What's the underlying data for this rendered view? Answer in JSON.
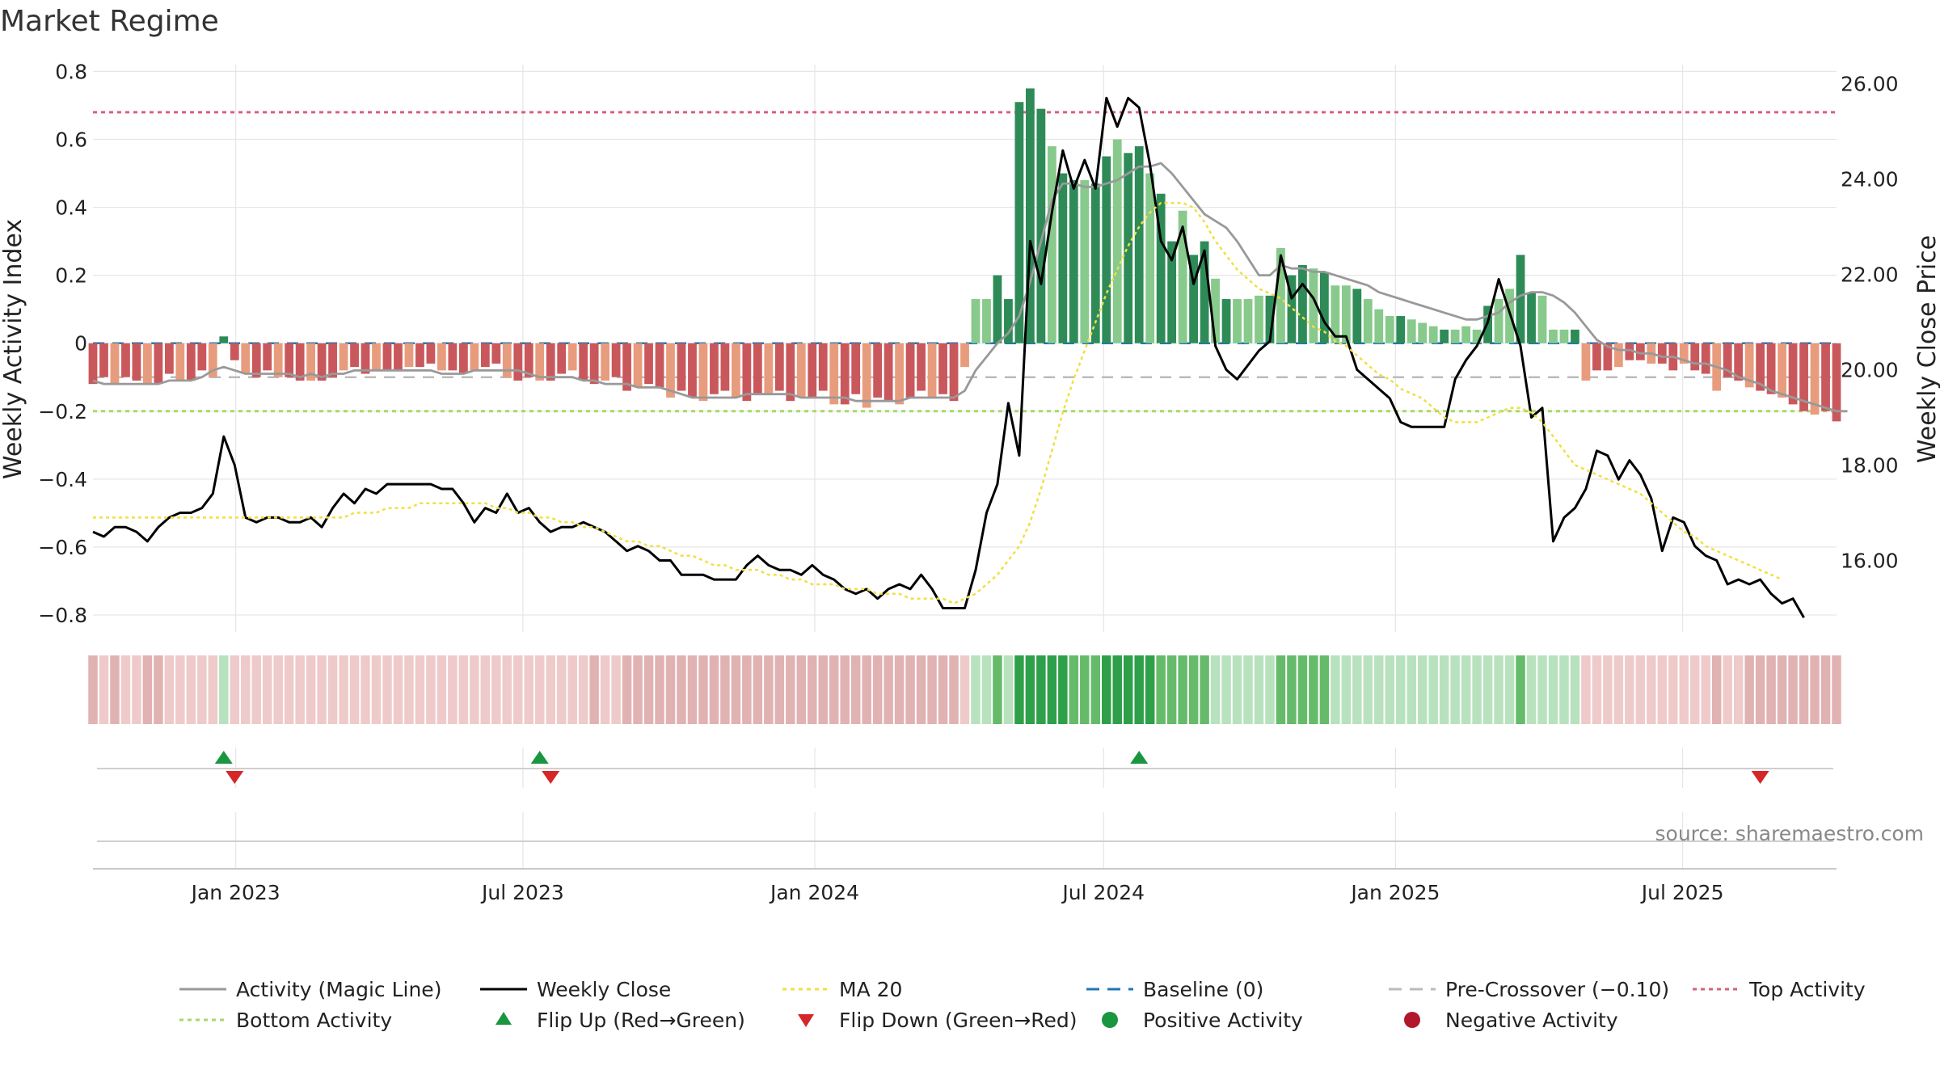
{
  "chart_data": {
    "type": "bar",
    "title": "Market Regime",
    "ylabel_left": "Weekly Activity Index",
    "ylabel_right": "Weekly Close Price",
    "ylim_left": [
      -0.85,
      0.82
    ],
    "ylim_right": [
      14.5,
      26.4
    ],
    "yticks_left": [
      "0.8",
      "0.6",
      "0.4",
      "0.2",
      "0",
      "−0.2",
      "−0.4",
      "−0.6",
      "−0.8"
    ],
    "yticks_left_values": [
      0.8,
      0.6,
      0.4,
      0.2,
      0,
      -0.2,
      -0.4,
      -0.6,
      -0.8
    ],
    "yticks_right": [
      "26.00",
      "24.00",
      "22.00",
      "20.00",
      "18.00",
      "16.00"
    ],
    "yticks_right_values": [
      26,
      24,
      22,
      20,
      18,
      16
    ],
    "x_start_date": "2022-10-03",
    "x_end_date": "2025-10-06",
    "xticks": [
      {
        "date": "2023-01-01",
        "label": "Jan 2023"
      },
      {
        "date": "2023-07-01",
        "label": "Jul 2023"
      },
      {
        "date": "2024-01-01",
        "label": "Jan 2024"
      },
      {
        "date": "2024-07-01",
        "label": "Jul 2024"
      },
      {
        "date": "2025-01-01",
        "label": "Jan 2025"
      },
      {
        "date": "2025-07-01",
        "label": "Jul 2025"
      }
    ],
    "reference_lines": [
      {
        "name": "Top Activity",
        "value": 0.68,
        "color": "#d9607a",
        "style": "dot"
      },
      {
        "name": "Baseline (0)",
        "value": 0,
        "color": "#1f77b4",
        "style": "dash"
      },
      {
        "name": "Pre-Crossover (−0.10)",
        "value": -0.1,
        "color": "#bbbbbb",
        "style": "dash"
      },
      {
        "name": "Bottom Activity",
        "value": -0.2,
        "color": "#a6d96a",
        "style": "dot"
      }
    ],
    "series": [
      {
        "name": "Activity (Magic Line)",
        "color": "#999999",
        "axis": "left",
        "values": [
          -0.11,
          -0.12,
          -0.12,
          -0.12,
          -0.12,
          -0.12,
          -0.12,
          -0.11,
          -0.11,
          -0.11,
          -0.1,
          -0.08,
          -0.07,
          -0.08,
          -0.09,
          -0.09,
          -0.09,
          -0.09,
          -0.09,
          -0.1,
          -0.09,
          -0.1,
          -0.09,
          -0.09,
          -0.08,
          -0.08,
          -0.08,
          -0.08,
          -0.08,
          -0.08,
          -0.08,
          -0.08,
          -0.09,
          -0.09,
          -0.09,
          -0.08,
          -0.08,
          -0.08,
          -0.08,
          -0.08,
          -0.09,
          -0.1,
          -0.1,
          -0.1,
          -0.1,
          -0.11,
          -0.11,
          -0.12,
          -0.12,
          -0.12,
          -0.13,
          -0.13,
          -0.13,
          -0.14,
          -0.15,
          -0.16,
          -0.16,
          -0.16,
          -0.16,
          -0.16,
          -0.15,
          -0.15,
          -0.15,
          -0.15,
          -0.15,
          -0.16,
          -0.16,
          -0.16,
          -0.16,
          -0.16,
          -0.17,
          -0.17,
          -0.17,
          -0.17,
          -0.17,
          -0.16,
          -0.16,
          -0.16,
          -0.16,
          -0.16,
          -0.14,
          -0.08,
          -0.04,
          0.0,
          0.03,
          0.08,
          0.18,
          0.3,
          0.42,
          0.47,
          0.47,
          0.46,
          0.46,
          0.47,
          0.48,
          0.5,
          0.52,
          0.52,
          0.53,
          0.5,
          0.46,
          0.42,
          0.38,
          0.36,
          0.34,
          0.3,
          0.25,
          0.2,
          0.2,
          0.23,
          0.22,
          0.22,
          0.21,
          0.21,
          0.2,
          0.19,
          0.18,
          0.17,
          0.15,
          0.14,
          0.13,
          0.12,
          0.11,
          0.1,
          0.09,
          0.08,
          0.07,
          0.07,
          0.08,
          0.09,
          0.12,
          0.14,
          0.15,
          0.15,
          0.14,
          0.12,
          0.09,
          0.05,
          0.01,
          -0.01,
          -0.02,
          -0.02,
          -0.03,
          -0.03,
          -0.04,
          -0.04,
          -0.05,
          -0.06,
          -0.06,
          -0.07,
          -0.08,
          -0.1,
          -0.11,
          -0.12,
          -0.14,
          -0.15,
          -0.16,
          -0.17,
          -0.18,
          -0.19,
          -0.2,
          -0.2
        ]
      },
      {
        "name": "Weekly Close",
        "color": "#000000",
        "axis": "right",
        "values": [
          16.6,
          16.5,
          16.7,
          16.7,
          16.6,
          16.4,
          16.7,
          16.9,
          17.0,
          17.0,
          17.1,
          17.4,
          18.6,
          18.0,
          16.9,
          16.8,
          16.9,
          16.9,
          16.8,
          16.8,
          16.9,
          16.7,
          17.1,
          17.4,
          17.2,
          17.5,
          17.4,
          17.6,
          17.6,
          17.6,
          17.6,
          17.6,
          17.5,
          17.5,
          17.2,
          16.8,
          17.1,
          17.0,
          17.4,
          17.0,
          17.1,
          16.8,
          16.6,
          16.7,
          16.7,
          16.8,
          16.7,
          16.6,
          16.4,
          16.2,
          16.3,
          16.2,
          16.0,
          16.0,
          15.7,
          15.7,
          15.7,
          15.6,
          15.6,
          15.6,
          15.9,
          16.1,
          15.9,
          15.8,
          15.8,
          15.7,
          15.9,
          15.7,
          15.6,
          15.4,
          15.3,
          15.4,
          15.2,
          15.4,
          15.5,
          15.4,
          15.7,
          15.4,
          15.0,
          15.0,
          15.0,
          15.8,
          17.0,
          17.6,
          19.3,
          18.2,
          22.7,
          21.8,
          23.3,
          24.6,
          23.8,
          24.4,
          23.8,
          25.7,
          25.1,
          25.7,
          25.5,
          24.3,
          22.7,
          22.3,
          23.0,
          21.8,
          22.5,
          20.5,
          20.0,
          19.8,
          20.1,
          20.4,
          20.6,
          22.4,
          21.5,
          21.8,
          21.5,
          21.0,
          20.7,
          20.7,
          20.0,
          19.8,
          19.6,
          19.4,
          18.9,
          18.8,
          18.8,
          18.8,
          18.8,
          19.8,
          20.2,
          20.5,
          21.0,
          21.9,
          21.2,
          20.5,
          19.0,
          19.2,
          16.4,
          16.9,
          17.1,
          17.5,
          18.3,
          18.2,
          17.7,
          18.1,
          17.8,
          17.3,
          16.2,
          16.9,
          16.8,
          16.3,
          16.1,
          16.0,
          15.5,
          15.6,
          15.5,
          15.6,
          15.3,
          15.1,
          15.2,
          14.8
        ]
      },
      {
        "name": "MA 20",
        "color": "#f0e040",
        "axis": "right",
        "values": [
          16.9,
          16.9,
          16.9,
          16.9,
          16.9,
          16.9,
          16.9,
          16.9,
          16.9,
          16.9,
          16.9,
          16.9,
          16.9,
          16.9,
          16.9,
          16.9,
          16.9,
          16.9,
          16.9,
          16.9,
          16.9,
          16.9,
          16.9,
          16.9,
          17.0,
          17.0,
          17.0,
          17.1,
          17.1,
          17.1,
          17.2,
          17.2,
          17.2,
          17.2,
          17.2,
          17.2,
          17.2,
          17.1,
          17.1,
          17.0,
          17.0,
          16.9,
          16.9,
          16.8,
          16.8,
          16.7,
          16.7,
          16.6,
          16.5,
          16.4,
          16.4,
          16.3,
          16.3,
          16.2,
          16.1,
          16.1,
          16.0,
          15.9,
          15.9,
          15.8,
          15.8,
          15.8,
          15.7,
          15.7,
          15.6,
          15.6,
          15.5,
          15.5,
          15.5,
          15.4,
          15.4,
          15.4,
          15.3,
          15.3,
          15.3,
          15.2,
          15.2,
          15.2,
          15.2,
          15.1,
          15.2,
          15.3,
          15.5,
          15.7,
          16.0,
          16.3,
          16.8,
          17.5,
          18.3,
          19.1,
          19.8,
          20.4,
          21.0,
          21.6,
          22.1,
          22.6,
          23.0,
          23.3,
          23.5,
          23.5,
          23.5,
          23.4,
          23.1,
          22.7,
          22.4,
          22.1,
          21.9,
          21.7,
          21.6,
          21.5,
          21.3,
          21.1,
          20.9,
          20.8,
          20.6,
          20.5,
          20.3,
          20.1,
          19.9,
          19.8,
          19.6,
          19.5,
          19.4,
          19.2,
          19.0,
          18.9,
          18.9,
          18.9,
          19.0,
          19.1,
          19.2,
          19.2,
          19.1,
          18.9,
          18.6,
          18.3,
          18.0,
          17.9,
          17.8,
          17.7,
          17.6,
          17.5,
          17.4,
          17.2,
          17.0,
          16.8,
          16.6,
          16.5,
          16.3,
          16.2,
          16.1,
          16.0,
          15.9,
          15.8,
          15.7,
          15.6
        ]
      }
    ],
    "activity_bars": {
      "name": "Weekly Activity Index",
      "values": [
        -0.12,
        -0.1,
        -0.12,
        -0.1,
        -0.11,
        -0.12,
        -0.12,
        -0.09,
        -0.11,
        -0.11,
        -0.08,
        -0.1,
        0.02,
        -0.05,
        -0.09,
        -0.1,
        -0.08,
        -0.1,
        -0.1,
        -0.11,
        -0.11,
        -0.11,
        -0.1,
        -0.08,
        -0.07,
        -0.09,
        -0.08,
        -0.08,
        -0.08,
        -0.07,
        -0.07,
        -0.06,
        -0.08,
        -0.08,
        -0.09,
        -0.08,
        -0.07,
        -0.06,
        -0.1,
        -0.11,
        -0.1,
        -0.11,
        -0.11,
        -0.09,
        -0.08,
        -0.11,
        -0.12,
        -0.11,
        -0.1,
        -0.14,
        -0.13,
        -0.12,
        -0.13,
        -0.16,
        -0.14,
        -0.16,
        -0.17,
        -0.15,
        -0.14,
        -0.16,
        -0.17,
        -0.15,
        -0.15,
        -0.14,
        -0.17,
        -0.16,
        -0.16,
        -0.14,
        -0.18,
        -0.18,
        -0.15,
        -0.19,
        -0.16,
        -0.17,
        -0.18,
        -0.16,
        -0.14,
        -0.16,
        -0.15,
        -0.17,
        -0.07,
        0.13,
        0.13,
        0.2,
        0.13,
        0.71,
        0.75,
        0.69,
        0.58,
        0.5,
        0.48,
        0.48,
        0.47,
        0.55,
        0.6,
        0.56,
        0.58,
        0.5,
        0.44,
        0.3,
        0.39,
        0.26,
        0.3,
        0.19,
        0.13,
        0.13,
        0.13,
        0.14,
        0.14,
        0.28,
        0.2,
        0.23,
        0.22,
        0.21,
        0.17,
        0.17,
        0.16,
        0.13,
        0.1,
        0.08,
        0.08,
        0.07,
        0.06,
        0.05,
        0.04,
        0.04,
        0.05,
        0.04,
        0.11,
        0.13,
        0.16,
        0.26,
        0.15,
        0.14,
        0.04,
        0.04,
        0.04,
        -0.11,
        -0.08,
        -0.08,
        -0.07,
        -0.05,
        -0.05,
        -0.06,
        -0.06,
        -0.08,
        -0.06,
        -0.08,
        -0.09,
        -0.14,
        -0.1,
        -0.11,
        -0.13,
        -0.14,
        -0.15,
        -0.16,
        -0.18,
        -0.2,
        -0.21,
        -0.2,
        -0.23
      ],
      "colors": {
        "pos_strong": "#2e8b57",
        "pos_light": "#88c98c",
        "neg_strong": "#c9585c",
        "neg_light": "#e89c7e"
      }
    },
    "regime_strip": {
      "colors": {
        "green_strong": "#2fa04a",
        "green_mid": "#66bb6a",
        "green_light": "#b8e2be",
        "red_light": "#efcaca",
        "red_mid": "#e1b2b2"
      }
    },
    "flip_up_weeks": [
      12,
      41,
      96
    ],
    "flip_down_weeks": [
      13,
      42,
      153
    ],
    "legend": [
      {
        "label": "Activity (Magic Line)",
        "kind": "line",
        "color": "#999999",
        "style": "solid"
      },
      {
        "label": "Weekly Close",
        "kind": "line",
        "color": "#000000",
        "style": "solid"
      },
      {
        "label": "MA 20",
        "kind": "line",
        "color": "#f0e040",
        "style": "dot"
      },
      {
        "label": "Baseline (0)",
        "kind": "line",
        "color": "#1f77b4",
        "style": "dash"
      },
      {
        "label": "Pre-Crossover (−0.10)",
        "kind": "line",
        "color": "#bbbbbb",
        "style": "dash"
      },
      {
        "label": "Top Activity",
        "kind": "line",
        "color": "#d9607a",
        "style": "dot"
      },
      {
        "label": "Bottom Activity",
        "kind": "line",
        "color": "#a6d96a",
        "style": "dot"
      },
      {
        "label": "Flip Up (Red→Green)",
        "kind": "tri-up",
        "color": "#1a9641"
      },
      {
        "label": "Flip Down (Green→Red)",
        "kind": "tri-down",
        "color": "#d62728"
      },
      {
        "label": "Positive Activity",
        "kind": "dot",
        "color": "#1a9641"
      },
      {
        "label": "Negative Activity",
        "kind": "dot",
        "color": "#b2182b"
      }
    ],
    "legend_placement": "bottom",
    "grid": true
  },
  "source_text": "source: sharemaestro.com"
}
